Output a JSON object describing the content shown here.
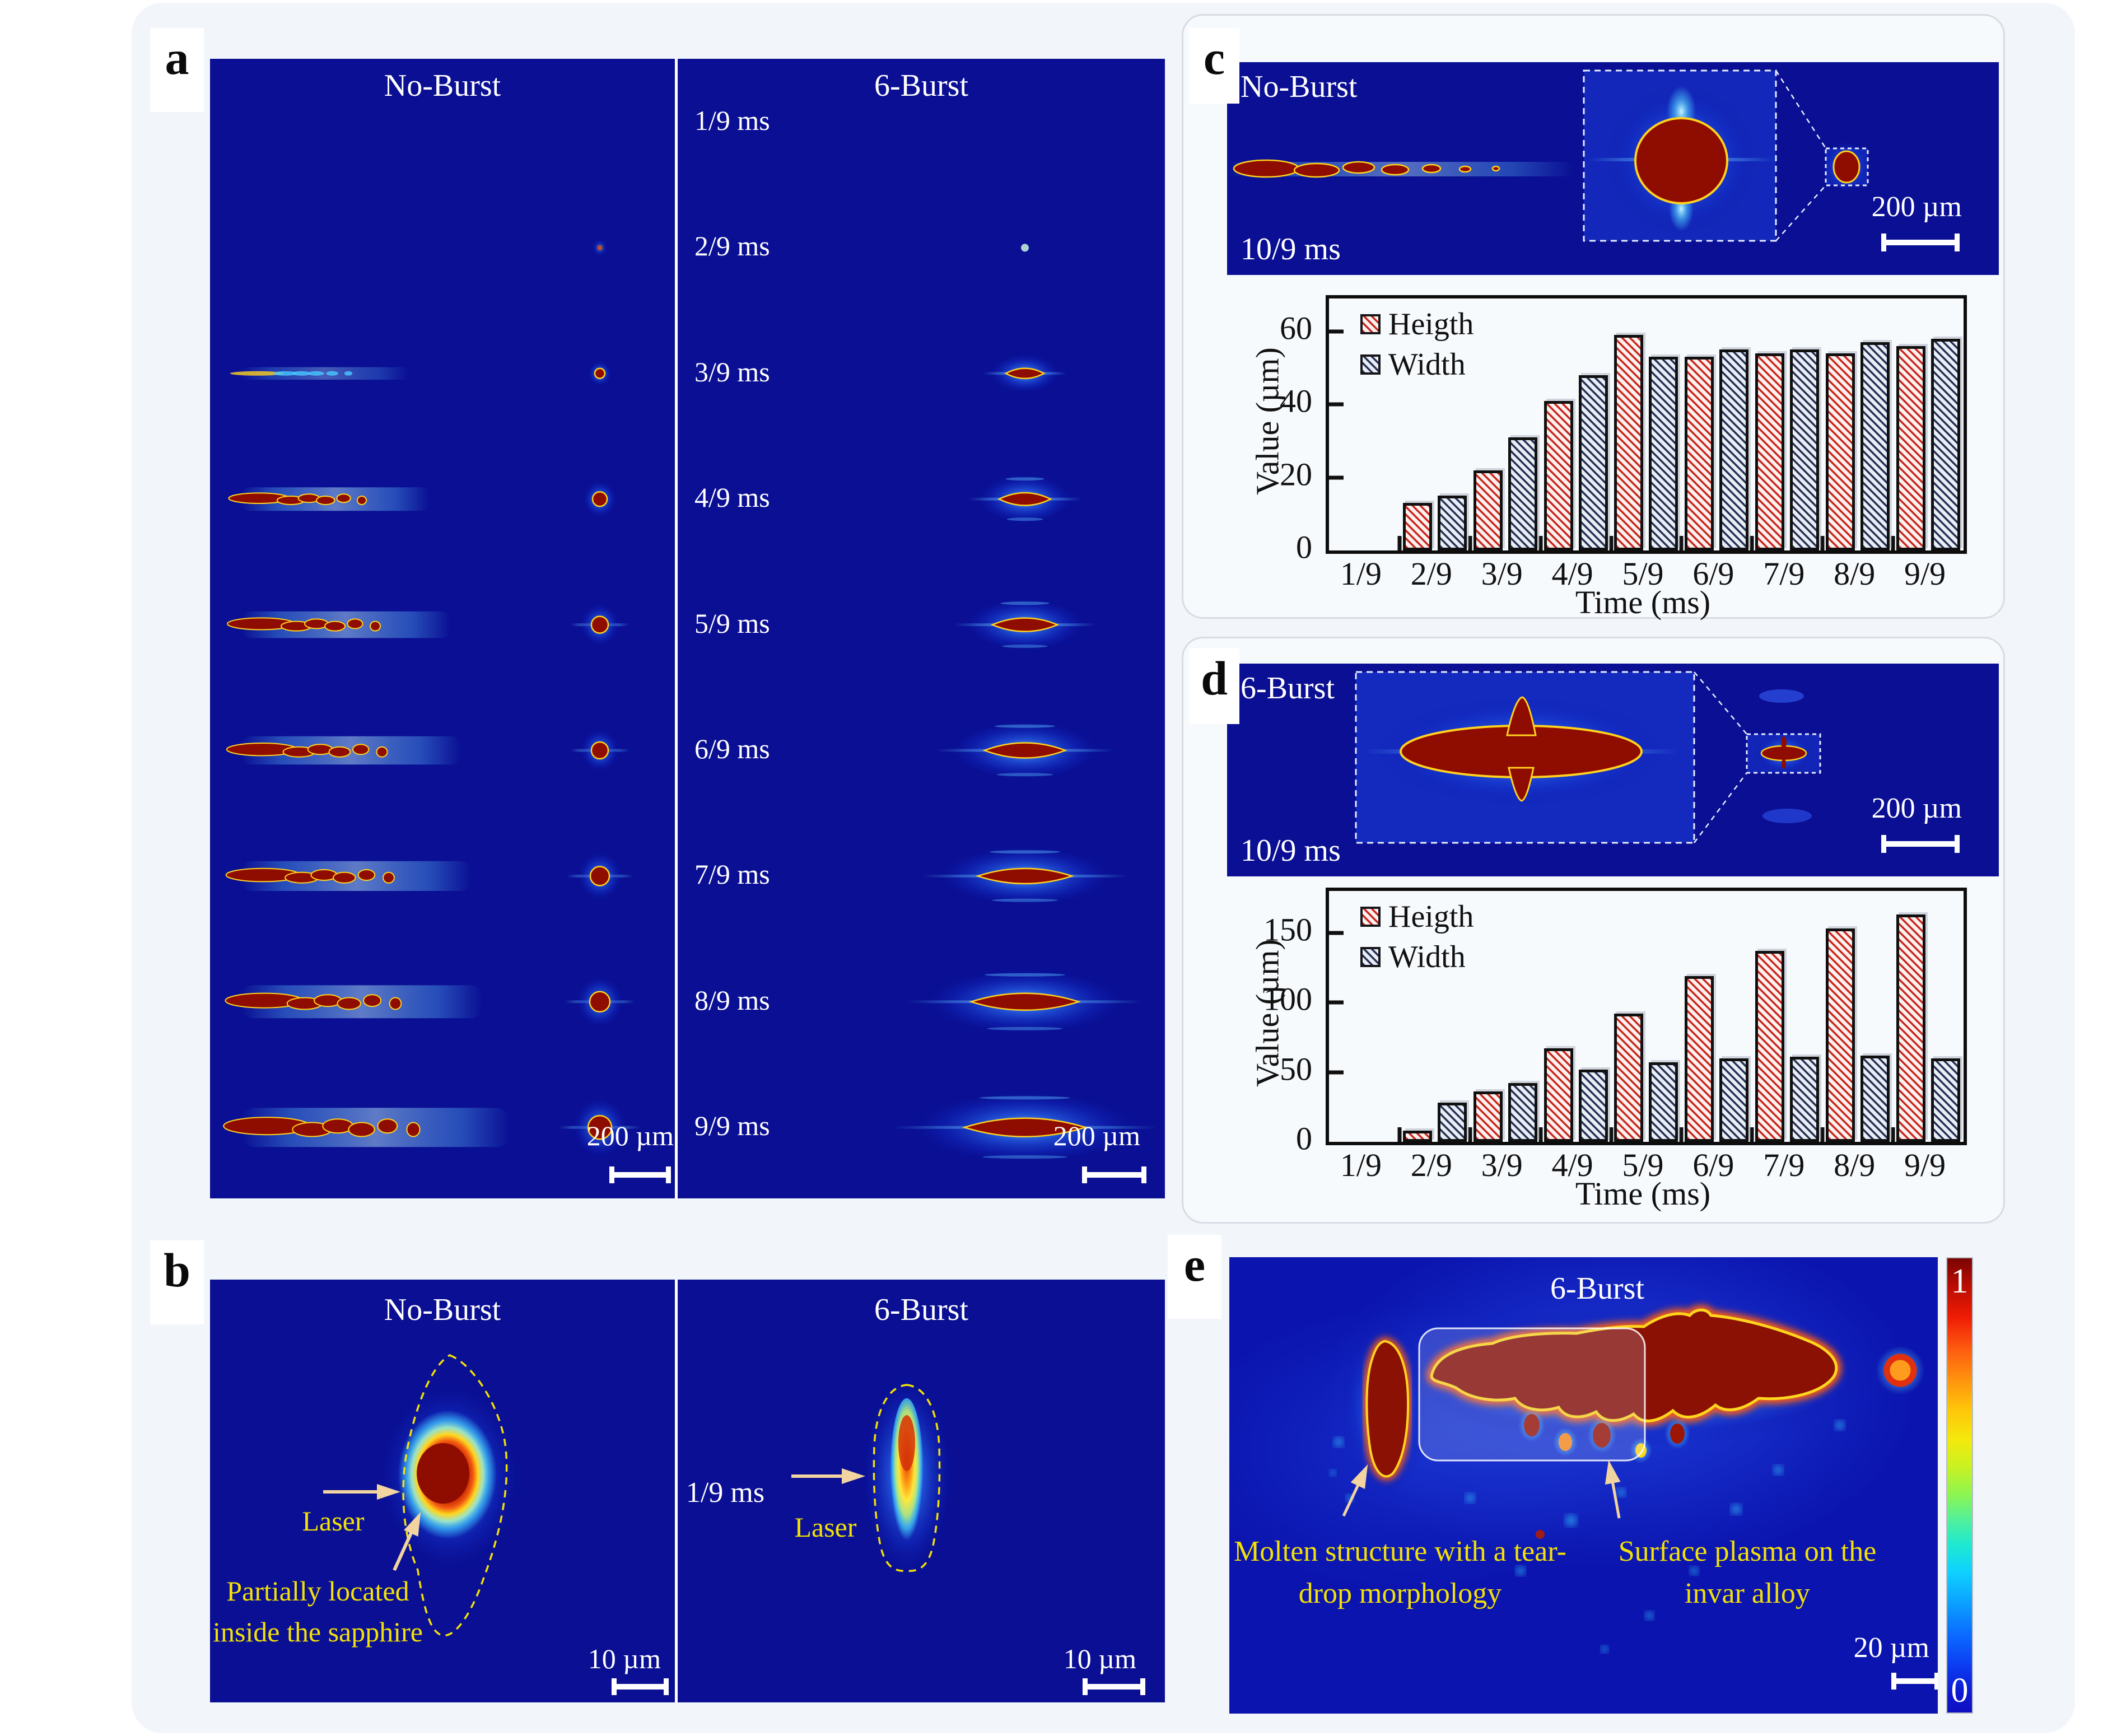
{
  "figure": {
    "panel_a": {
      "label": "a",
      "no_burst_title": "No-Burst",
      "six_burst_title": "6-Burst",
      "time_labels": [
        "1/9 ms",
        "2/9 ms",
        "3/9 ms",
        "4/9 ms",
        "5/9 ms",
        "6/9 ms",
        "7/9 ms",
        "8/9 ms",
        "9/9 ms"
      ],
      "scale_bar_left": "200 µm",
      "scale_bar_right": "200 µm"
    },
    "panel_b": {
      "label": "b",
      "no_burst_title": "No-Burst",
      "six_burst_title": "6-Burst",
      "time_label": "1/9 ms",
      "laser_label_left": "Laser",
      "laser_label_right": "Laser",
      "annotation": "Partially located inside the sapphire",
      "scale_bar_left": "10 µm",
      "scale_bar_right": "10 µm"
    },
    "panel_c": {
      "label": "c",
      "image_title": "No-Burst",
      "image_time": "10/9 ms",
      "image_scale_bar": "200 µm"
    },
    "panel_d": {
      "label": "d",
      "image_title": "6-Burst",
      "image_time": "10/9 ms",
      "image_scale_bar": "200 µm"
    },
    "panel_e": {
      "label": "e",
      "title": "6-Burst",
      "annotation_molten": "Molten structure with a tear-drop morphology",
      "annotation_surface": "Surface plasma on the invar alloy",
      "scale_bar": "20 µm",
      "colorbar_max": "1",
      "colorbar_min": "0"
    }
  },
  "chart_data": [
    {
      "type": "bar",
      "panel": "c",
      "title": "",
      "categories": [
        "1/9",
        "2/9",
        "3/9",
        "4/9",
        "5/9",
        "6/9",
        "7/9",
        "8/9",
        "9/9"
      ],
      "series": [
        {
          "name": "Heigth",
          "values": [
            0,
            13,
            22,
            41,
            59,
            53,
            54,
            54,
            56
          ]
        },
        {
          "name": "Width",
          "values": [
            0,
            15,
            31,
            48,
            53,
            55,
            55,
            57,
            58
          ]
        }
      ],
      "xlabel": "Time (ms)",
      "ylabel": "Value (µm)",
      "ylim": [
        0,
        69
      ],
      "yticks": [
        0,
        20,
        40,
        60
      ],
      "legend_position": "top-left",
      "grid": false
    },
    {
      "type": "bar",
      "panel": "d",
      "title": "",
      "categories": [
        "1/9",
        "2/9",
        "3/9",
        "4/9",
        "5/9",
        "6/9",
        "7/9",
        "8/9",
        "9/9"
      ],
      "series": [
        {
          "name": "Heigth",
          "values": [
            0,
            8,
            36,
            67,
            92,
            119,
            137,
            153,
            163
          ]
        },
        {
          "name": "Width",
          "values": [
            0,
            28,
            42,
            52,
            57,
            60,
            61,
            62,
            60
          ]
        }
      ],
      "xlabel": "Time (ms)",
      "ylabel": "Value (µm)",
      "ylim": [
        0,
        180
      ],
      "yticks": [
        0,
        50,
        100,
        150
      ],
      "legend_position": "top-left",
      "grid": false
    }
  ],
  "colors": {
    "image_background": "#0a0f93",
    "height_bar_hatch": "#c8291f",
    "width_bar_hatch": "#273254",
    "annotation_yellow": "#f2e007",
    "arrow_beige": "#f2d4a0",
    "scale_bar_white": "#ffffff"
  }
}
